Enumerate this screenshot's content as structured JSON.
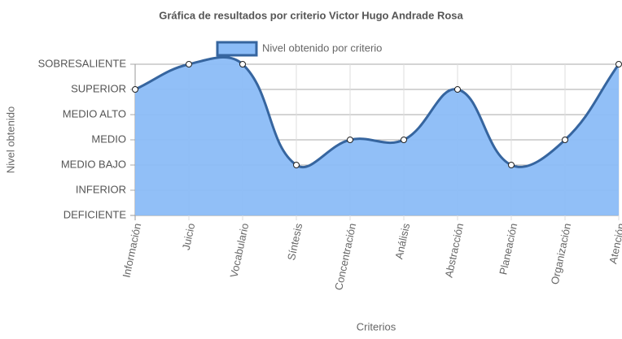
{
  "chart_data": {
    "type": "line",
    "title": "Gráfica de resultados por criterio Victor Hugo Andrade Rosa",
    "x_label": "Criterios",
    "y_label": "Nivel obtenido",
    "categories": [
      "Información",
      "Juicio",
      "Vocabulario",
      "Síntesis",
      "Concentración",
      "Análisis",
      "Abstracción",
      "Planeación",
      "Organización",
      "Atención"
    ],
    "series": [
      {
        "name": "Nivel obtenido por criterio",
        "color": "#36659f",
        "fill": "#8bbcf7",
        "values": [
          5,
          6,
          6,
          2,
          3,
          3,
          5,
          2,
          3,
          6
        ]
      }
    ],
    "ylim": [
      0,
      6
    ],
    "yticks": [
      {
        "value": 0,
        "label": "DEFICIENTE"
      },
      {
        "value": 1,
        "label": "INFERIOR"
      },
      {
        "value": 2,
        "label": "MEDIO BAJO"
      },
      {
        "value": 3,
        "label": "MEDIO"
      },
      {
        "value": 4,
        "label": "MEDIO ALTO"
      },
      {
        "value": 5,
        "label": "SUPERIOR"
      },
      {
        "value": 6,
        "label": "SOBRESALIENTE"
      }
    ],
    "grid": true,
    "legend": "top"
  }
}
